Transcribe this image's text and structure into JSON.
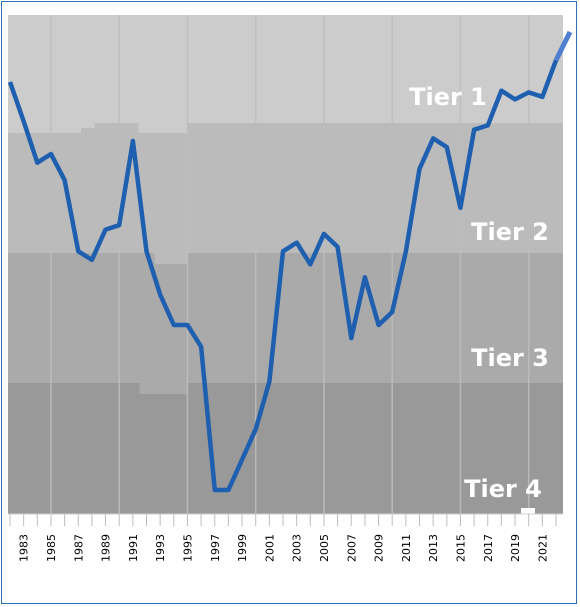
{
  "chart_data": {
    "type": "line",
    "title": "",
    "xlabel": "",
    "ylabel": "",
    "line_color": "#1f5fb0",
    "band_colors": [
      "#cccccc",
      "#bbbbbb",
      "#aaaaaa",
      "#999999"
    ],
    "x_tick_labels": [
      "1983",
      "1985",
      "1987",
      "1989",
      "1991",
      "1993",
      "1995",
      "1997",
      "1999",
      "2001",
      "2003",
      "2005",
      "2007",
      "2009",
      "2011",
      "2013",
      "2015",
      "2017",
      "2019",
      "2021"
    ],
    "tier_labels": [
      "Tier 1",
      "Tier 2",
      "Tier 3",
      "Tier 4"
    ],
    "series": [
      {
        "years": [
          1982,
          1983,
          1984,
          1985,
          1986,
          1987,
          1988,
          1989,
          1990,
          1991,
          1992,
          1993,
          1994,
          1995,
          1996,
          1997,
          1998,
          1999,
          2000,
          2001,
          2002,
          2003,
          2004,
          2005,
          2006,
          2007,
          2008,
          2009,
          2010,
          2011,
          2012,
          2013,
          2014,
          2015,
          2016,
          2017,
          2018,
          2019,
          2020,
          2021,
          2022
        ],
        "values": [
          1.0,
          1.45,
          1.93,
          1.83,
          2.13,
          2.95,
          3.05,
          2.7,
          2.65,
          1.68,
          2.95,
          3.45,
          3.8,
          3.8,
          4.05,
          5.7,
          5.7,
          5.35,
          5.0,
          4.45,
          2.95,
          2.85,
          3.1,
          2.75,
          2.9,
          3.95,
          3.25,
          3.8,
          3.65,
          2.95,
          2.0,
          1.65,
          1.75,
          2.45,
          1.55,
          1.5,
          1.1,
          1.2,
          1.12,
          1.17,
          0.75
        ]
      }
    ]
  }
}
